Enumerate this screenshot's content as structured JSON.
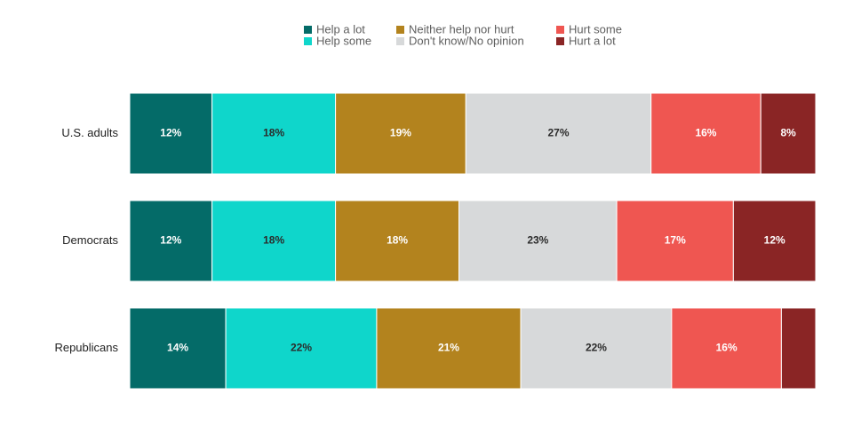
{
  "chart_data": {
    "type": "bar",
    "orientation": "horizontal",
    "stacked": true,
    "title": "",
    "xlabel": "",
    "ylabel": "",
    "xlim": [
      0,
      100
    ],
    "grid": false,
    "legend_position": "top-center",
    "categories": [
      "U.S. adults",
      "Democrats",
      "Republicans"
    ],
    "series": [
      {
        "name": "Help a lot",
        "color": "#046b68",
        "label_color": "#ffffff",
        "values": [
          12,
          12,
          14
        ],
        "labels": [
          "12%",
          "12%",
          "14%"
        ]
      },
      {
        "name": "Help some",
        "color": "#0fd6cb",
        "label_color": "#2b2b2b",
        "values": [
          18,
          18,
          22
        ],
        "labels": [
          "18%",
          "18%",
          "22%"
        ]
      },
      {
        "name": "Neither help nor hurt",
        "color": "#b3831e",
        "label_color": "#ffffff",
        "values": [
          19,
          18,
          21
        ],
        "labels": [
          "19%",
          "18%",
          "21%"
        ]
      },
      {
        "name": "Don't know/No opinion",
        "color": "#d7d9da",
        "label_color": "#2b2b2b",
        "values": [
          27,
          23,
          22
        ],
        "labels": [
          "27%",
          "23%",
          "22%"
        ]
      },
      {
        "name": "Hurt some",
        "color": "#ef5651",
        "label_color": "#ffffff",
        "values": [
          16,
          17,
          16
        ],
        "labels": [
          "16%",
          "17%",
          "16%"
        ]
      },
      {
        "name": "Hurt a lot",
        "color": "#8a2525",
        "label_color": "#ffffff",
        "values": [
          8,
          12,
          5
        ],
        "labels": [
          "8%",
          "12%",
          ""
        ]
      }
    ]
  }
}
